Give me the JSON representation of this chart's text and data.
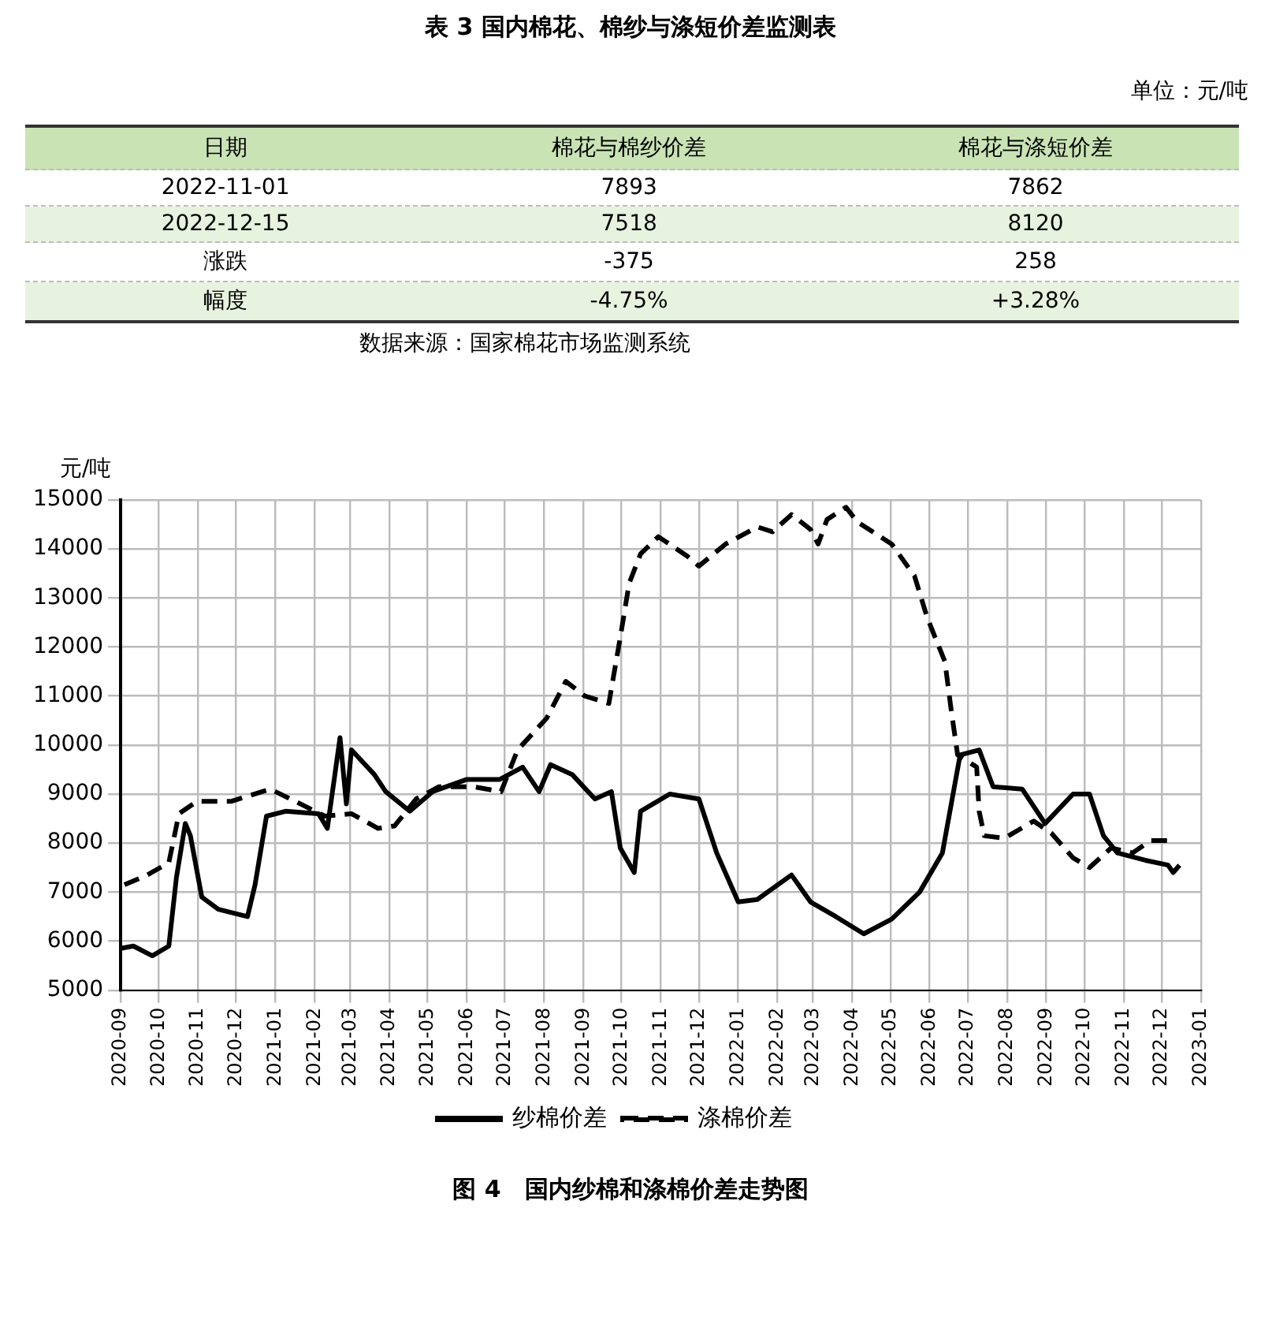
{
  "chart_data": [
    {
      "type": "other",
      "title": "表 3 国内棉花、棉纱与涤短价差监测表",
      "subtitle": "单位：元/吨",
      "ylabel": "日期",
      "categories": [
        "棉花与棉纱价差",
        "棉花与涤短价差"
      ],
      "y_categories": [
        "2022-11-01",
        "2022-12-15",
        "涨跌",
        "幅度"
      ],
      "cell_labels": [
        [
          "7893",
          "7862"
        ],
        [
          "7518",
          "8120"
        ],
        [
          "-375",
          "258"
        ],
        [
          "-4.75%",
          "+3.28%"
        ]
      ],
      "annotations": [
        "数据来源：国家棉花市场监测系统"
      ]
    },
    {
      "type": "line",
      "title": "图 4　国内纱棉和涤棉价差走势图",
      "ylabel": "元/吨",
      "xlim": [
        "2020-09",
        "2023-01"
      ],
      "xticks": [
        "2020-09",
        "2020-10",
        "2020-11",
        "2020-12",
        "2021-01",
        "2021-02",
        "2021-03",
        "2021-04",
        "2021-05",
        "2021-06",
        "2021-07",
        "2021-08",
        "2021-09",
        "2021-10",
        "2021-11",
        "2021-12",
        "2022-01",
        "2022-02",
        "2022-03",
        "2022-04",
        "2022-05",
        "2022-06",
        "2022-07",
        "2022-08",
        "2022-09",
        "2022-10",
        "2022-11",
        "2022-12",
        "2023-01"
      ],
      "ylim": [
        5000,
        15000
      ],
      "yticks": [
        5000,
        6000,
        7000,
        8000,
        9000,
        10000,
        11000,
        12000,
        13000,
        14000,
        15000
      ],
      "grid": true,
      "legend": "bottom",
      "series": [
        {
          "name": "纱棉价差",
          "color": "#000000",
          "line_style": "solid",
          "x": [
            "2020-09-01",
            "2020-09-11",
            "2020-09-26",
            "2020-10-09",
            "2020-10-15",
            "2020-10-22",
            "2020-10-26",
            "2020-11-04",
            "2020-11-17",
            "2020-12-10",
            "2020-12-16",
            "2020-12-25",
            "2021-01-09",
            "2021-02-04",
            "2021-02-11",
            "2021-02-21",
            "2021-02-26",
            "2021-03-02",
            "2021-03-20",
            "2021-03-29",
            "2021-04-17",
            "2021-05-05",
            "2021-06-01",
            "2021-06-27",
            "2021-07-15",
            "2021-07-28",
            "2021-08-06",
            "2021-08-23",
            "2021-09-10",
            "2021-09-23",
            "2021-09-30",
            "2021-10-11",
            "2021-10-16",
            "2021-11-08",
            "2021-12-01",
            "2021-12-15",
            "2022-01-01",
            "2022-01-16",
            "2022-02-12",
            "2022-02-27",
            "2022-03-19",
            "2022-04-10",
            "2022-05-02",
            "2022-05-24",
            "2022-06-11",
            "2022-06-25",
            "2022-07-10",
            "2022-07-21",
            "2022-08-13",
            "2022-08-31",
            "2022-09-22",
            "2022-10-05",
            "2022-10-16",
            "2022-10-27",
            "2022-11-18",
            "2022-12-06",
            "2022-12-10",
            "2022-12-15"
          ],
          "values": [
            5850,
            5900,
            5700,
            5900,
            7300,
            8400,
            8150,
            6900,
            6650,
            6500,
            7150,
            8550,
            8650,
            8600,
            8300,
            10150,
            8800,
            9900,
            9400,
            9050,
            8650,
            9050,
            9300,
            9300,
            9550,
            9050,
            9600,
            9400,
            8900,
            9050,
            7900,
            7400,
            8650,
            9000,
            8900,
            7800,
            6800,
            6850,
            7350,
            6800,
            6500,
            6150,
            6450,
            7000,
            7800,
            9800,
            9900,
            9150,
            9100,
            8400,
            9000,
            9000,
            8150,
            7800,
            7650,
            7550,
            7400,
            7550
          ]
        },
        {
          "name": "涤棉价差",
          "color": "#000000",
          "line_style": "dashed",
          "x": [
            "2020-09-04",
            "2020-09-22",
            "2020-10-09",
            "2020-10-17",
            "2020-10-31",
            "2020-11-27",
            "2020-12-28",
            "2021-01-13",
            "2021-02-09",
            "2021-03-02",
            "2021-03-23",
            "2021-04-05",
            "2021-04-22",
            "2021-05-10",
            "2021-06-06",
            "2021-06-28",
            "2021-07-11",
            "2021-08-03",
            "2021-08-18",
            "2021-09-02",
            "2021-09-21",
            "2021-09-30",
            "2021-10-07",
            "2021-10-16",
            "2021-10-30",
            "2021-11-22",
            "2021-12-01",
            "2021-12-22",
            "2022-01-16",
            "2022-01-28",
            "2022-02-12",
            "2022-02-27",
            "2022-03-05",
            "2022-03-12",
            "2022-03-27",
            "2022-04-05",
            "2022-05-02",
            "2022-05-20",
            "2022-05-30",
            "2022-06-13",
            "2022-06-18",
            "2022-06-23",
            "2022-07-08",
            "2022-07-10",
            "2022-07-14",
            "2022-07-30",
            "2022-08-22",
            "2022-09-05",
            "2022-09-22",
            "2022-10-05",
            "2022-10-22",
            "2022-11-08",
            "2022-11-22",
            "2022-12-10"
          ],
          "values": [
            7150,
            7350,
            7600,
            8600,
            8850,
            8850,
            9100,
            8900,
            8550,
            8600,
            8300,
            8350,
            8900,
            9150,
            9150,
            9050,
            9900,
            10550,
            11300,
            11000,
            10850,
            12200,
            13300,
            13900,
            14250,
            13850,
            13650,
            14100,
            14450,
            14350,
            14700,
            14400,
            14100,
            14600,
            14850,
            14550,
            14100,
            13450,
            12600,
            11700,
            10700,
            9800,
            9550,
            8650,
            8150,
            8100,
            8450,
            8200,
            7700,
            7500,
            7900,
            7800,
            8050,
            8050
          ]
        }
      ]
    }
  ]
}
